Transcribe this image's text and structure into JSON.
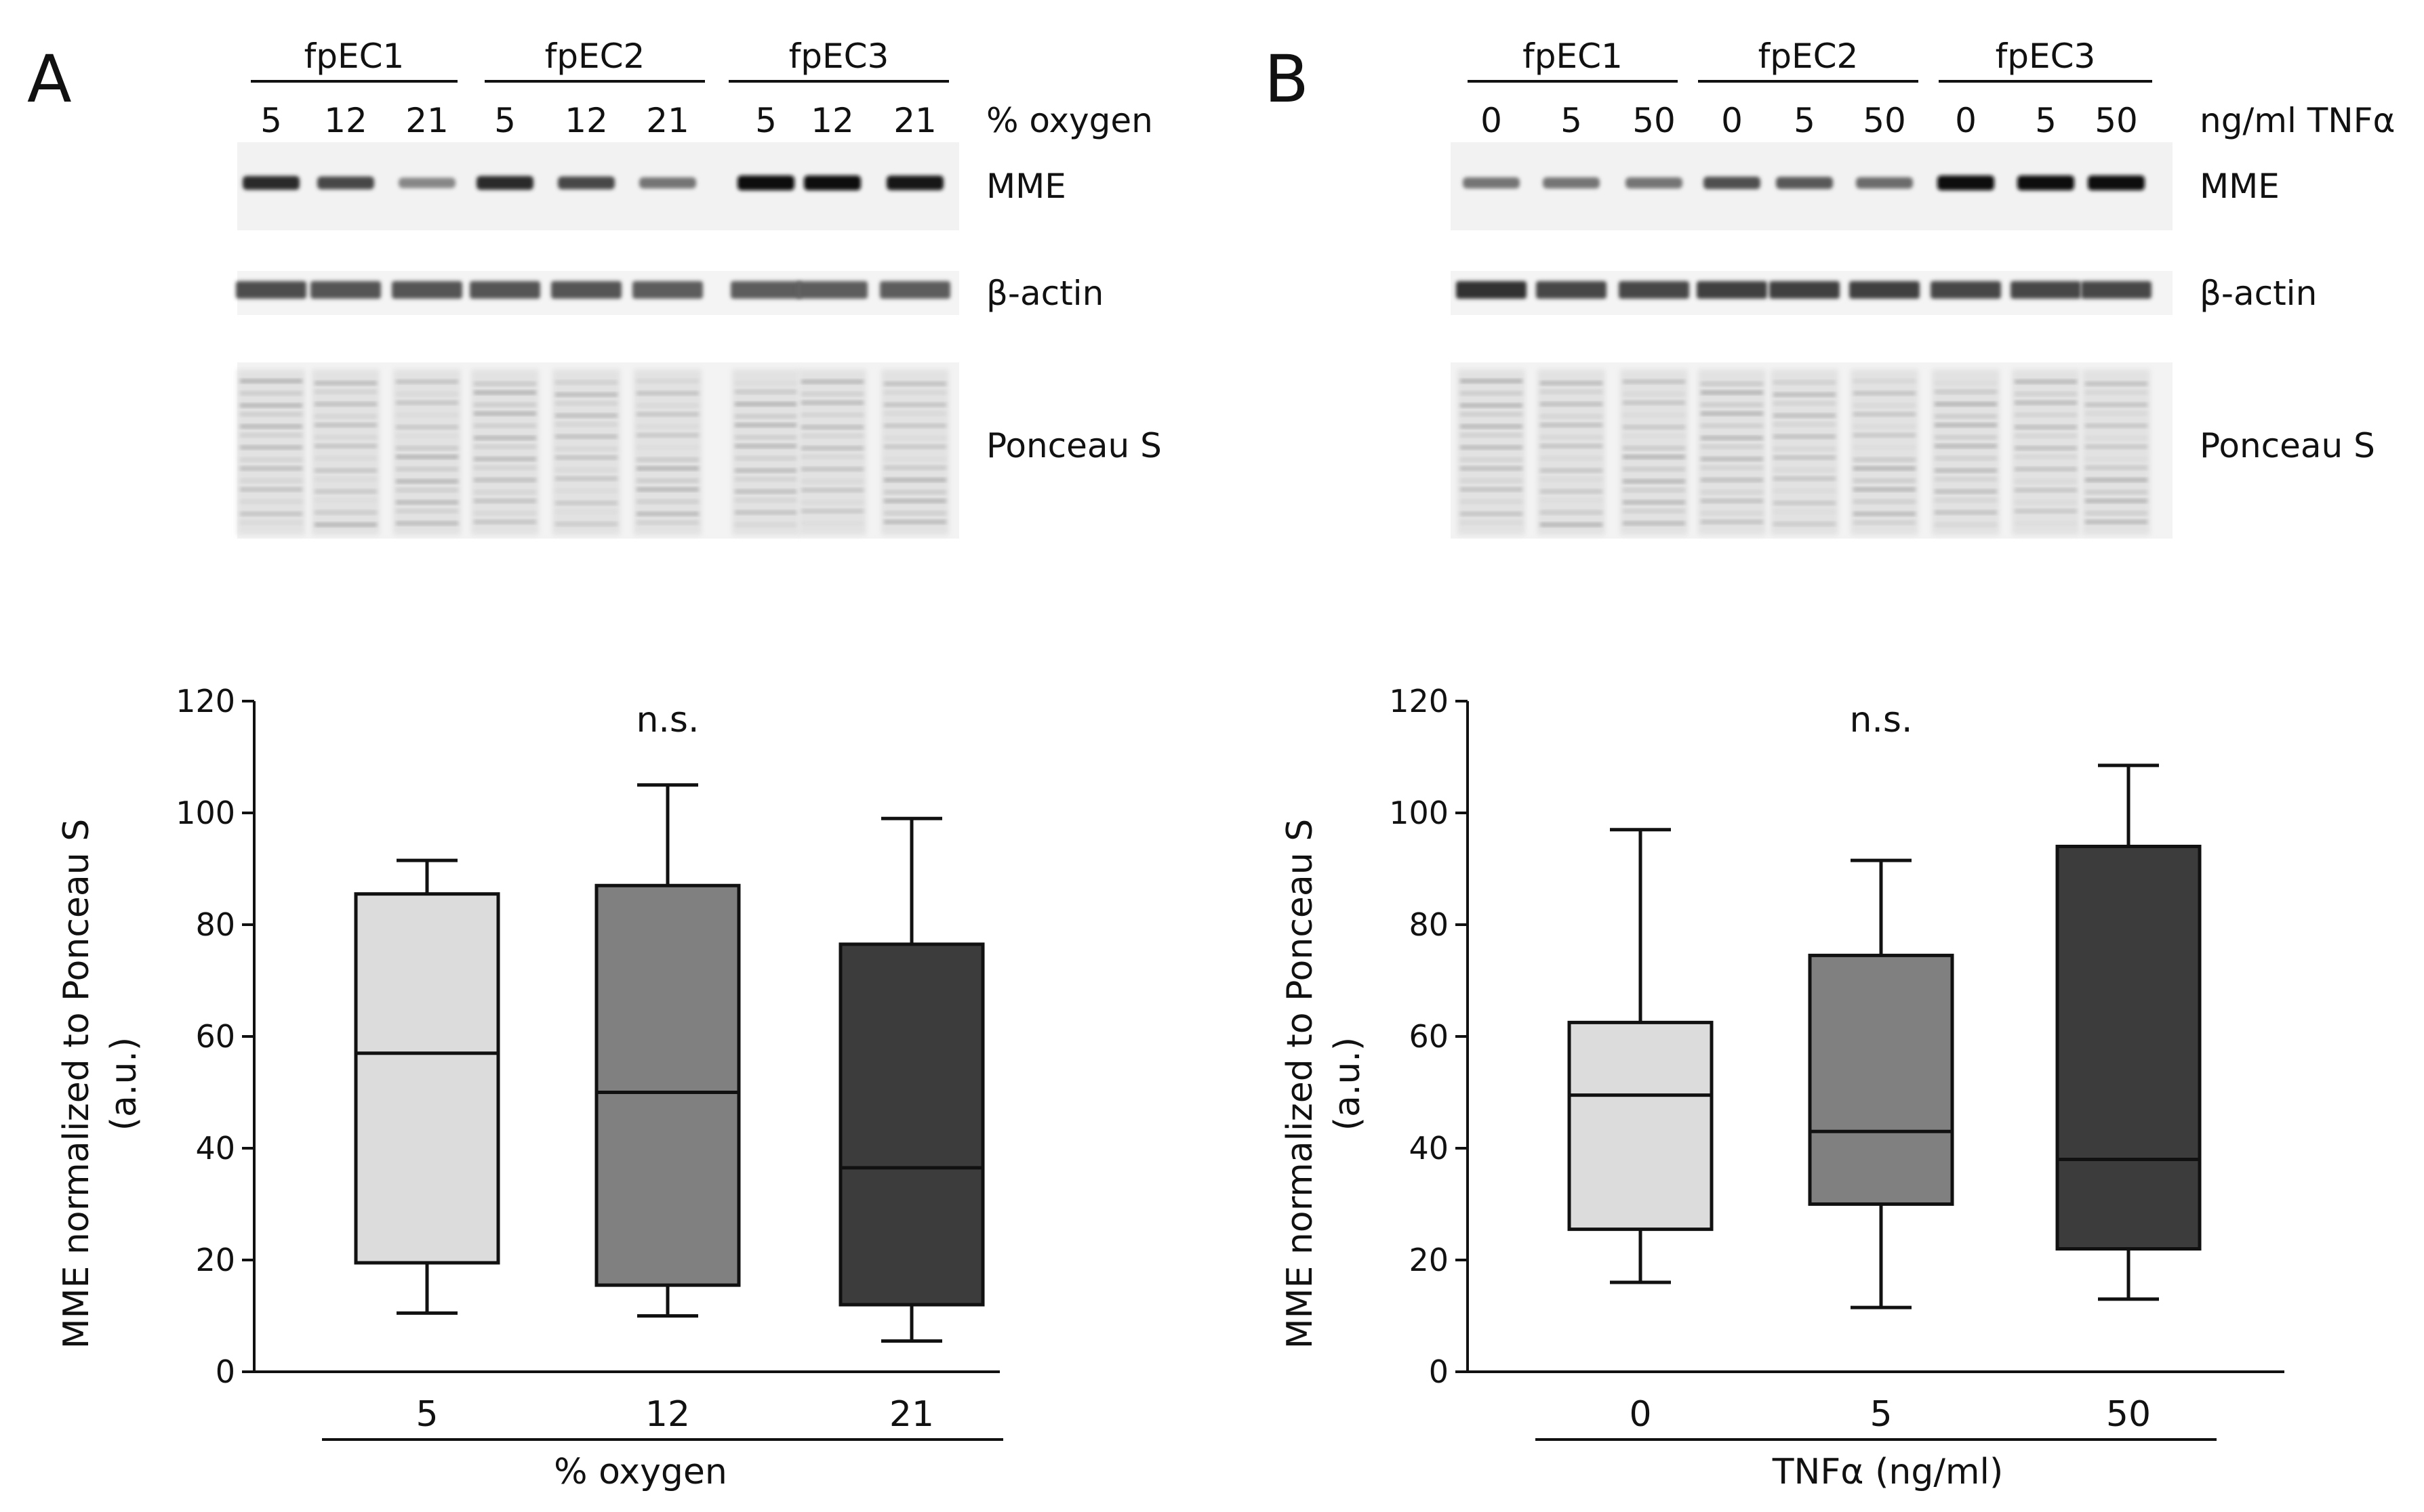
{
  "panels": [
    {
      "letter": "A",
      "blot": {
        "groups": [
          "fpEC1",
          "fpEC2",
          "fpEC3"
        ],
        "lanes": [
          "5",
          "12",
          "21",
          "5",
          "12",
          "21",
          "5",
          "12",
          "21"
        ],
        "lane_unit": "% oxygen",
        "bands": [
          "MME",
          "β-actin",
          "Ponceau S"
        ],
        "mme_intensity": [
          0.85,
          0.7,
          0.35,
          0.85,
          0.7,
          0.45,
          1.0,
          1.0,
          0.95
        ],
        "actin_intensity": [
          0.75,
          0.7,
          0.7,
          0.7,
          0.7,
          0.65,
          0.65,
          0.65,
          0.65
        ]
      },
      "chart_data": {
        "type": "box",
        "xlabel": "% oxygen",
        "ylabel": "MME normalized to Ponceau S",
        "ylabel_line2": "(a.u.)",
        "ylim": [
          0,
          120
        ],
        "yticks": [
          0,
          20,
          40,
          60,
          80,
          100,
          120
        ],
        "annotation": "n.s.",
        "categories": [
          "5",
          "12",
          "21"
        ],
        "boxes": [
          {
            "min": 10.5,
            "q1": 19.5,
            "median": 57,
            "q3": 85.5,
            "max": 91.5,
            "color": "#dcdcdc"
          },
          {
            "min": 10,
            "q1": 15.5,
            "median": 50,
            "q3": 87,
            "max": 105,
            "color": "#808080"
          },
          {
            "min": 5.5,
            "q1": 12,
            "median": 36.5,
            "q3": 76.5,
            "max": 99,
            "color": "#3c3c3c"
          }
        ]
      }
    },
    {
      "letter": "B",
      "blot": {
        "groups": [
          "fpEC1",
          "fpEC2",
          "fpEC3"
        ],
        "lanes": [
          "0",
          "5",
          "50",
          "0",
          "5",
          "50",
          "0",
          "5",
          "50"
        ],
        "lane_unit": "ng/ml TNFα",
        "bands": [
          "MME",
          "β-actin",
          "Ponceau S"
        ],
        "mme_intensity": [
          0.45,
          0.45,
          0.45,
          0.65,
          0.6,
          0.5,
          1.0,
          1.0,
          1.0
        ],
        "actin_intensity": [
          0.95,
          0.8,
          0.8,
          0.85,
          0.85,
          0.85,
          0.8,
          0.8,
          0.8
        ]
      },
      "chart_data": {
        "type": "box",
        "xlabel": "TNFα (ng/ml)",
        "ylabel": "MME normalized to Ponceau S",
        "ylabel_line2": "(a.u.)",
        "ylim": [
          0,
          120
        ],
        "yticks": [
          0,
          20,
          40,
          60,
          80,
          100,
          120
        ],
        "annotation": "n.s.",
        "categories": [
          "0",
          "5",
          "50"
        ],
        "boxes": [
          {
            "min": 16,
            "q1": 25.5,
            "median": 49.5,
            "q3": 62.5,
            "max": 97,
            "color": "#dcdcdc"
          },
          {
            "min": 11.5,
            "q1": 30,
            "median": 43,
            "q3": 74.5,
            "max": 91.5,
            "color": "#808080"
          },
          {
            "min": 13,
            "q1": 22,
            "median": 38,
            "q3": 94,
            "max": 108.5,
            "color": "#3c3c3c"
          }
        ]
      }
    }
  ]
}
